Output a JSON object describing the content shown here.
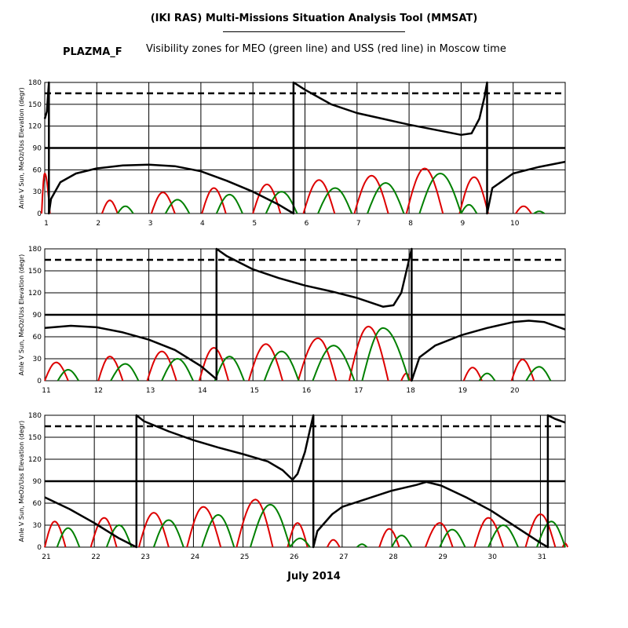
{
  "header": {
    "title": "(IKI RAS) Multi-Missions Situation Analysis Tool (MMSAT)",
    "satellite": "PLAZMA_F",
    "subtitle": "Visibility zones for MEO (green line) and USS (red line) in Moscow time"
  },
  "footer": {
    "month": "July 2014"
  },
  "colors": {
    "meo": "#008000",
    "uss": "#dd0000",
    "angle": "#000000",
    "grid": "#000000"
  },
  "chart_data": [
    {
      "type": "line",
      "ylabel": "Anle V Sun, MeOz/Uss Elevation (degr)",
      "xlim": [
        1,
        11
      ],
      "ylim": [
        0,
        180
      ],
      "yticks": [
        0,
        30,
        60,
        90,
        120,
        150,
        180
      ],
      "xticks": [
        1,
        2,
        3,
        4,
        5,
        6,
        7,
        8,
        9,
        10
      ],
      "reference_lines": [
        90,
        165
      ],
      "angle_curve": [
        [
          1.0,
          130
        ],
        [
          1.04,
          140
        ],
        [
          1.08,
          180
        ],
        [
          1.08,
          0
        ],
        [
          1.12,
          20
        ],
        [
          1.3,
          43
        ],
        [
          1.6,
          55
        ],
        [
          2.0,
          62
        ],
        [
          2.5,
          66
        ],
        [
          3.0,
          67
        ],
        [
          3.5,
          65
        ],
        [
          4.0,
          58
        ],
        [
          4.5,
          45
        ],
        [
          5.0,
          30
        ],
        [
          5.5,
          12
        ],
        [
          5.78,
          0
        ],
        [
          5.78,
          180
        ],
        [
          6.0,
          170
        ],
        [
          6.5,
          150
        ],
        [
          7.0,
          138
        ],
        [
          7.5,
          130
        ],
        [
          8.0,
          122
        ],
        [
          8.5,
          115
        ],
        [
          9.0,
          108
        ],
        [
          9.2,
          110
        ],
        [
          9.35,
          130
        ],
        [
          9.45,
          160
        ],
        [
          9.5,
          180
        ],
        [
          9.5,
          0
        ],
        [
          9.6,
          35
        ],
        [
          10.0,
          55
        ],
        [
          10.5,
          64
        ],
        [
          11.0,
          71
        ]
      ],
      "uss_passes": [
        {
          "start": 0.94,
          "peak_time": 1.0,
          "peak": 55,
          "end": 1.1
        },
        {
          "start": 2.1,
          "peak_time": 2.25,
          "peak": 18,
          "end": 2.4
        },
        {
          "start": 3.05,
          "peak_time": 3.27,
          "peak": 29,
          "end": 3.5
        },
        {
          "start": 4.02,
          "peak_time": 4.25,
          "peak": 35,
          "end": 4.48
        },
        {
          "start": 5.0,
          "peak_time": 5.27,
          "peak": 40,
          "end": 5.53
        },
        {
          "start": 5.97,
          "peak_time": 6.27,
          "peak": 46,
          "end": 6.57
        },
        {
          "start": 6.95,
          "peak_time": 7.28,
          "peak": 52,
          "end": 7.6
        },
        {
          "start": 7.95,
          "peak_time": 8.3,
          "peak": 62,
          "end": 8.65
        },
        {
          "start": 8.97,
          "peak_time": 9.25,
          "peak": 50,
          "end": 9.52
        },
        {
          "start": 10.05,
          "peak_time": 10.2,
          "peak": 10,
          "end": 10.35
        }
      ],
      "meo_passes": [
        {
          "start": 2.4,
          "peak_time": 2.55,
          "peak": 10,
          "end": 2.7
        },
        {
          "start": 3.32,
          "peak_time": 3.55,
          "peak": 19,
          "end": 3.78
        },
        {
          "start": 4.3,
          "peak_time": 4.55,
          "peak": 26,
          "end": 4.8
        },
        {
          "start": 5.25,
          "peak_time": 5.55,
          "peak": 30,
          "end": 5.85
        },
        {
          "start": 6.25,
          "peak_time": 6.58,
          "peak": 35,
          "end": 6.9
        },
        {
          "start": 7.2,
          "peak_time": 7.55,
          "peak": 42,
          "end": 7.9
        },
        {
          "start": 8.2,
          "peak_time": 8.6,
          "peak": 55,
          "end": 9.0
        },
        {
          "start": 9.0,
          "peak_time": 9.15,
          "peak": 12,
          "end": 9.3
        },
        {
          "start": 10.4,
          "peak_time": 10.5,
          "peak": 3,
          "end": 10.6
        }
      ]
    },
    {
      "type": "line",
      "ylabel": "Anle V Sun, MeOz/Uss Elevation (degr)",
      "xlim": [
        11,
        21
      ],
      "ylim": [
        0,
        180
      ],
      "yticks": [
        0,
        30,
        60,
        90,
        120,
        150,
        180
      ],
      "xticks": [
        11,
        12,
        13,
        14,
        15,
        16,
        17,
        18,
        19,
        20
      ],
      "reference_lines": [
        90,
        165
      ],
      "angle_curve": [
        [
          11.0,
          72
        ],
        [
          11.5,
          75
        ],
        [
          12.0,
          73
        ],
        [
          12.5,
          66
        ],
        [
          13.0,
          56
        ],
        [
          13.5,
          42
        ],
        [
          14.0,
          20
        ],
        [
          14.3,
          2
        ],
        [
          14.3,
          180
        ],
        [
          14.5,
          170
        ],
        [
          15.0,
          152
        ],
        [
          15.5,
          140
        ],
        [
          16.0,
          130
        ],
        [
          16.5,
          122
        ],
        [
          17.0,
          113
        ],
        [
          17.5,
          101
        ],
        [
          17.7,
          103
        ],
        [
          17.85,
          120
        ],
        [
          17.95,
          150
        ],
        [
          18.05,
          180
        ],
        [
          18.05,
          0
        ],
        [
          18.2,
          32
        ],
        [
          18.5,
          48
        ],
        [
          19.0,
          62
        ],
        [
          19.5,
          72
        ],
        [
          20.0,
          80
        ],
        [
          20.3,
          82
        ],
        [
          20.6,
          80
        ],
        [
          21.0,
          70
        ]
      ],
      "uss_passes": [
        {
          "start": 11.0,
          "peak_time": 11.22,
          "peak": 25,
          "end": 11.45
        },
        {
          "start": 12.03,
          "peak_time": 12.25,
          "peak": 33,
          "end": 12.5
        },
        {
          "start": 12.97,
          "peak_time": 13.25,
          "peak": 40,
          "end": 13.53
        },
        {
          "start": 13.97,
          "peak_time": 14.25,
          "peak": 45,
          "end": 14.53
        },
        {
          "start": 14.92,
          "peak_time": 15.25,
          "peak": 50,
          "end": 15.57
        },
        {
          "start": 15.87,
          "peak_time": 16.25,
          "peak": 58,
          "end": 16.6
        },
        {
          "start": 16.85,
          "peak_time": 17.22,
          "peak": 74,
          "end": 17.6
        },
        {
          "start": 17.85,
          "peak_time": 17.95,
          "peak": 10,
          "end": 18.02
        },
        {
          "start": 19.05,
          "peak_time": 19.22,
          "peak": 18,
          "end": 19.4
        },
        {
          "start": 19.97,
          "peak_time": 20.18,
          "peak": 29,
          "end": 20.4
        }
      ],
      "meo_passes": [
        {
          "start": 11.25,
          "peak_time": 11.45,
          "peak": 15,
          "end": 11.65
        },
        {
          "start": 12.27,
          "peak_time": 12.55,
          "peak": 23,
          "end": 12.8
        },
        {
          "start": 13.25,
          "peak_time": 13.55,
          "peak": 30,
          "end": 13.85
        },
        {
          "start": 14.27,
          "peak_time": 14.55,
          "peak": 33,
          "end": 14.83
        },
        {
          "start": 15.22,
          "peak_time": 15.55,
          "peak": 40,
          "end": 15.88
        },
        {
          "start": 16.15,
          "peak_time": 16.55,
          "peak": 48,
          "end": 16.95
        },
        {
          "start": 17.1,
          "peak_time": 17.5,
          "peak": 72,
          "end": 18.0
        },
        {
          "start": 19.35,
          "peak_time": 19.5,
          "peak": 10,
          "end": 19.65
        },
        {
          "start": 20.25,
          "peak_time": 20.5,
          "peak": 19,
          "end": 20.72
        }
      ]
    },
    {
      "type": "line",
      "ylabel": "Anle V Sun, MeOz/Uss Elevation (degr)",
      "xlim": [
        21,
        31.5
      ],
      "ylim": [
        0,
        180
      ],
      "yticks": [
        0,
        30,
        60,
        90,
        120,
        150,
        180
      ],
      "xticks": [
        21,
        22,
        23,
        24,
        25,
        26,
        27,
        28,
        29,
        30,
        31
      ],
      "reference_lines": [
        90,
        165
      ],
      "angle_curve": [
        [
          21.0,
          68
        ],
        [
          21.5,
          52
        ],
        [
          22.0,
          33
        ],
        [
          22.5,
          12
        ],
        [
          22.85,
          0
        ],
        [
          22.85,
          180
        ],
        [
          23.0,
          172
        ],
        [
          23.5,
          158
        ],
        [
          24.0,
          146
        ],
        [
          24.5,
          136
        ],
        [
          25.0,
          127
        ],
        [
          25.5,
          117
        ],
        [
          25.8,
          105
        ],
        [
          26.0,
          92
        ],
        [
          26.1,
          100
        ],
        [
          26.25,
          130
        ],
        [
          26.35,
          160
        ],
        [
          26.42,
          180
        ],
        [
          26.42,
          0
        ],
        [
          26.5,
          22
        ],
        [
          26.8,
          45
        ],
        [
          27.0,
          55
        ],
        [
          27.5,
          66
        ],
        [
          28.0,
          77
        ],
        [
          28.5,
          85
        ],
        [
          28.7,
          89
        ],
        [
          29.0,
          84
        ],
        [
          29.5,
          68
        ],
        [
          30.0,
          50
        ],
        [
          30.5,
          28
        ],
        [
          31.0,
          6
        ],
        [
          31.15,
          0
        ],
        [
          31.15,
          180
        ],
        [
          31.3,
          175
        ],
        [
          31.5,
          170
        ]
      ],
      "uss_passes": [
        {
          "start": 21.0,
          "peak_time": 21.2,
          "peak": 35,
          "end": 21.42
        },
        {
          "start": 21.93,
          "peak_time": 22.2,
          "peak": 40,
          "end": 22.45
        },
        {
          "start": 22.9,
          "peak_time": 23.2,
          "peak": 47,
          "end": 23.5
        },
        {
          "start": 23.87,
          "peak_time": 24.2,
          "peak": 55,
          "end": 24.55
        },
        {
          "start": 24.87,
          "peak_time": 25.25,
          "peak": 65,
          "end": 25.6
        },
        {
          "start": 25.9,
          "peak_time": 26.1,
          "peak": 33,
          "end": 26.3
        },
        {
          "start": 26.7,
          "peak_time": 26.82,
          "peak": 10,
          "end": 26.95
        },
        {
          "start": 27.75,
          "peak_time": 27.95,
          "peak": 25,
          "end": 28.15
        },
        {
          "start": 28.68,
          "peak_time": 28.97,
          "peak": 33,
          "end": 29.23
        },
        {
          "start": 29.67,
          "peak_time": 29.95,
          "peak": 40,
          "end": 30.25
        },
        {
          "start": 30.7,
          "peak_time": 31.0,
          "peak": 45,
          "end": 31.3
        },
        {
          "start": 31.45,
          "peak_time": 31.5,
          "peak": 5,
          "end": 31.55
        }
      ],
      "meo_passes": [
        {
          "start": 21.25,
          "peak_time": 21.47,
          "peak": 26,
          "end": 21.7
        },
        {
          "start": 22.25,
          "peak_time": 22.5,
          "peak": 30,
          "end": 22.75
        },
        {
          "start": 23.2,
          "peak_time": 23.5,
          "peak": 37,
          "end": 23.8
        },
        {
          "start": 24.17,
          "peak_time": 24.5,
          "peak": 44,
          "end": 24.82
        },
        {
          "start": 25.15,
          "peak_time": 25.55,
          "peak": 58,
          "end": 25.95
        },
        {
          "start": 25.95,
          "peak_time": 26.15,
          "peak": 12,
          "end": 26.35
        },
        {
          "start": 27.3,
          "peak_time": 27.4,
          "peak": 4,
          "end": 27.5
        },
        {
          "start": 28.0,
          "peak_time": 28.2,
          "peak": 16,
          "end": 28.4
        },
        {
          "start": 28.97,
          "peak_time": 29.22,
          "peak": 24,
          "end": 29.48
        },
        {
          "start": 29.95,
          "peak_time": 30.25,
          "peak": 30,
          "end": 30.55
        },
        {
          "start": 30.93,
          "peak_time": 31.22,
          "peak": 35,
          "end": 31.5
        }
      ]
    }
  ]
}
